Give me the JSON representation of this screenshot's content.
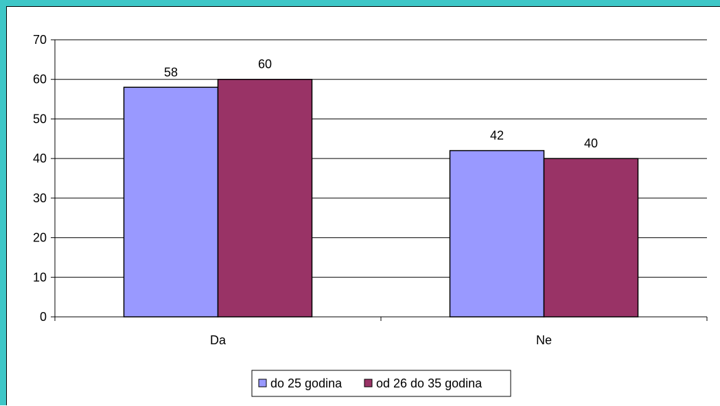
{
  "chart_data": {
    "type": "bar",
    "title": "",
    "xlabel": "",
    "ylabel": "",
    "categories": [
      "Da",
      "Ne"
    ],
    "series": [
      {
        "name": "do 25 godina",
        "values": [
          58,
          42
        ],
        "color": "#9999ff"
      },
      {
        "name": "od 26 do 35 godina",
        "values": [
          60,
          40
        ],
        "color": "#993366"
      }
    ],
    "ylim": [
      0,
      70
    ],
    "yticks": [
      0,
      10,
      20,
      30,
      40,
      50,
      60,
      70
    ],
    "grid": true,
    "legend": "bottom-center",
    "data_labels": true
  }
}
